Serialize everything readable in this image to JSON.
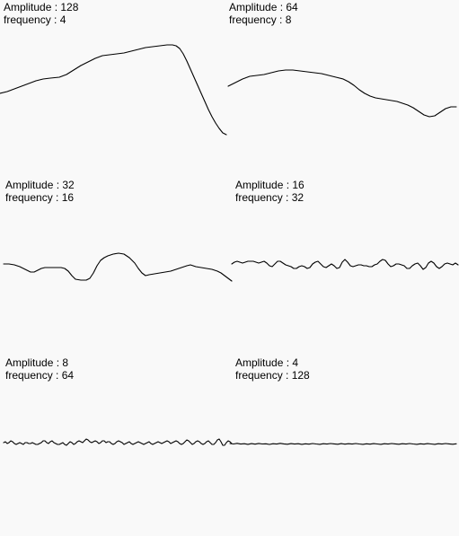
{
  "panels": [
    {
      "amplitude_label": "Amplitude : 128",
      "frequency_label": "frequency : 4",
      "amplitude": 128,
      "frequency": 4
    },
    {
      "amplitude_label": "Amplitude : 64",
      "frequency_label": "frequency : 8",
      "amplitude": 64,
      "frequency": 8
    },
    {
      "amplitude_label": "Amplitude : 32",
      "frequency_label": "frequency : 16",
      "amplitude": 32,
      "frequency": 16
    },
    {
      "amplitude_label": "Amplitude : 16",
      "frequency_label": "frequency : 32",
      "amplitude": 16,
      "frequency": 32
    },
    {
      "amplitude_label": "Amplitude : 8",
      "frequency_label": "frequency : 64",
      "amplitude": 8,
      "frequency": 64
    },
    {
      "amplitude_label": "Amplitude : 4",
      "frequency_label": "frequency : 128",
      "amplitude": 4,
      "frequency": 128
    }
  ],
  "colors": {
    "background": "#f9f9f9",
    "stroke": "#000000",
    "text": "#000000"
  }
}
